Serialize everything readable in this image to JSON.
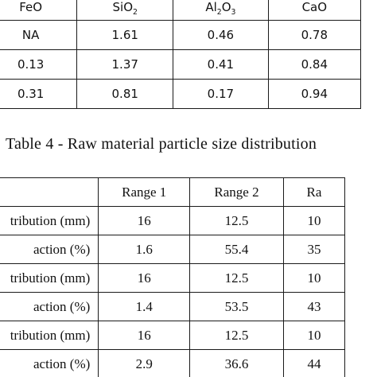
{
  "table3": {
    "headers": [
      {
        "base": "FeO",
        "parts": []
      },
      {
        "base": "",
        "parts": [
          {
            "t": "SiO",
            "sub": false
          },
          {
            "t": "2",
            "sub": true
          }
        ]
      },
      {
        "base": "",
        "parts": [
          {
            "t": "Al",
            "sub": false
          },
          {
            "t": "2",
            "sub": true
          },
          {
            "t": "O",
            "sub": false
          },
          {
            "t": "3",
            "sub": true
          }
        ]
      },
      {
        "base": "CaO",
        "parts": []
      }
    ],
    "rows": [
      [
        "NA",
        "1.61",
        "0.46",
        "0.78"
      ],
      [
        "0.13",
        "1.37",
        "0.41",
        "0.84"
      ],
      [
        "0.31",
        "0.81",
        "0.17",
        "0.94"
      ]
    ]
  },
  "caption": "Table 4 - Raw material particle size distribution",
  "table4": {
    "headers": [
      "",
      "Range 1",
      "Range 2",
      "Ra"
    ],
    "rows": [
      [
        "tribution (mm)",
        "16",
        "12.5",
        "10"
      ],
      [
        "action (%)",
        "1.6",
        "55.4",
        "35"
      ],
      [
        "tribution (mm)",
        "16",
        "12.5",
        "10"
      ],
      [
        "action (%)",
        "1.4",
        "53.5",
        "43"
      ],
      [
        "tribution (mm)",
        "16",
        "12.5",
        "10"
      ],
      [
        "action (%)",
        "2.9",
        "36.6",
        "44"
      ]
    ]
  }
}
